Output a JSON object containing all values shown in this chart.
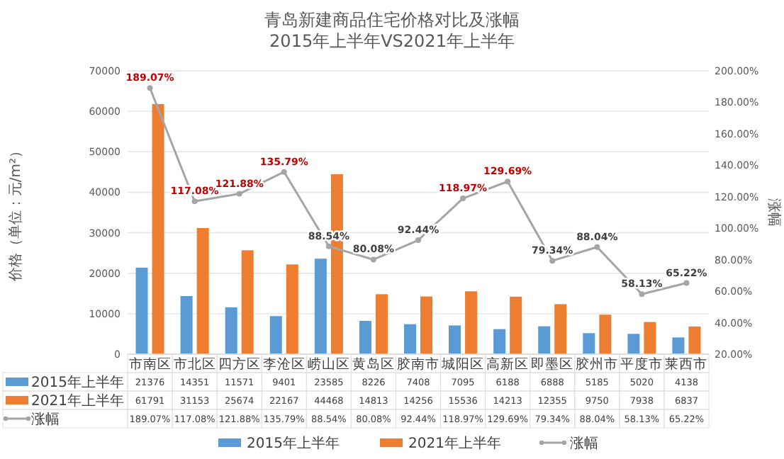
{
  "chart_data": {
    "type": "bar",
    "title": "青岛新建商品住宅价格对比及涨幅",
    "subtitle": "2015年上半年VS2021年上半年",
    "categories": [
      "市南区",
      "市北区",
      "四方区",
      "李沧区",
      "崂山区",
      "黄岛区",
      "胶南市",
      "城阳区",
      "高新区",
      "即墨区",
      "胶州市",
      "平度市",
      "莱西市"
    ],
    "series": [
      {
        "name": "2015年上半年",
        "color": "#5b9bd5",
        "values": [
          21376,
          14351,
          11571,
          9401,
          23585,
          8226,
          7408,
          7095,
          6188,
          6888,
          5185,
          5020,
          4138
        ]
      },
      {
        "name": "2021年上半年",
        "color": "#ed7d31",
        "values": [
          61791,
          31153,
          25674,
          22167,
          44468,
          14813,
          14256,
          15536,
          14213,
          12355,
          9750,
          7938,
          6837
        ]
      },
      {
        "name": "涨幅",
        "type": "line",
        "axis": "y2",
        "color": "#a5a5a5",
        "marker": "circle",
        "values": [
          189.07,
          117.08,
          121.88,
          135.79,
          88.54,
          80.08,
          92.44,
          118.97,
          129.69,
          79.34,
          88.04,
          58.13,
          65.22
        ],
        "value_labels": [
          "189.07%",
          "117.08%",
          "121.88%",
          "135.79%",
          "88.54%",
          "80.08%",
          "92.44%",
          "118.97%",
          "129.69%",
          "79.34%",
          "88.04%",
          "58.13%",
          "65.22%"
        ]
      }
    ],
    "ylabel": "价格（单位：元/m²）",
    "y2label": "涨幅",
    "ylim": [
      0,
      70000
    ],
    "yticks": [
      0,
      10000,
      20000,
      30000,
      40000,
      50000,
      60000,
      70000
    ],
    "y2lim": [
      20,
      200
    ],
    "y2ticks": [
      {
        "value": 20,
        "label": "20.00%"
      },
      {
        "value": 40,
        "label": "40.00%"
      },
      {
        "value": 60,
        "label": "60.00%"
      },
      {
        "value": 80,
        "label": "80.00%"
      },
      {
        "value": 100,
        "label": "100.00%"
      },
      {
        "value": 120,
        "label": "120.00%"
      },
      {
        "value": 140,
        "label": "140.00%"
      },
      {
        "value": 160,
        "label": "160.00%"
      },
      {
        "value": 180,
        "label": "180.00%"
      },
      {
        "value": 200,
        "label": "200.00%"
      }
    ],
    "grid": "y",
    "legend": "bottom",
    "data_labels": true
  }
}
